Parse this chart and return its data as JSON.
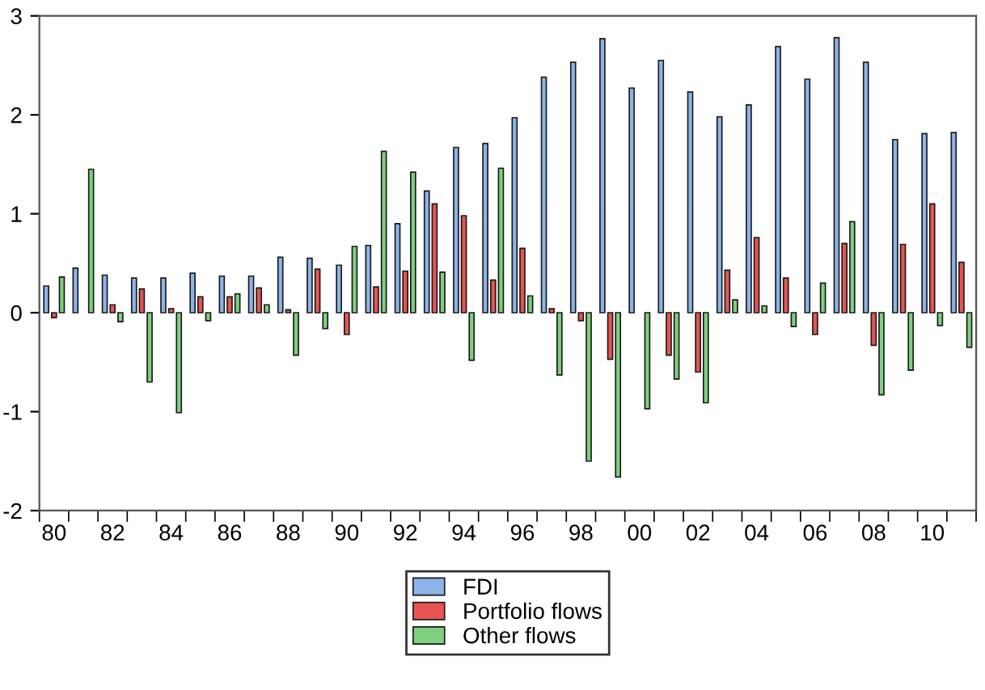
{
  "chart_data": {
    "type": "bar",
    "categories": [
      "80",
      null,
      "82",
      null,
      "84",
      null,
      "86",
      null,
      "88",
      null,
      "90",
      null,
      "92",
      null,
      "94",
      null,
      "96",
      null,
      "98",
      null,
      "00",
      null,
      "02",
      null,
      "04",
      null,
      "06",
      null,
      "08",
      null,
      "10",
      null
    ],
    "series": [
      {
        "name": "FDI",
        "color": "#8db4e8",
        "values": [
          0.27,
          0.45,
          0.38,
          0.35,
          0.35,
          0.4,
          0.37,
          0.37,
          0.56,
          0.55,
          0.48,
          0.68,
          0.9,
          1.23,
          1.67,
          1.71,
          1.97,
          2.38,
          2.53,
          2.77,
          2.27,
          2.55,
          2.23,
          1.98,
          2.1,
          2.69,
          2.36,
          2.78,
          2.53,
          1.75,
          1.81,
          1.82
        ]
      },
      {
        "name": "Portfolio flows",
        "color": "#e85454",
        "values": [
          -0.05,
          null,
          0.08,
          0.24,
          0.04,
          0.16,
          0.16,
          0.25,
          0.03,
          0.44,
          -0.22,
          0.26,
          0.42,
          1.1,
          0.98,
          0.33,
          0.65,
          0.04,
          -0.08,
          -0.47,
          null,
          -0.43,
          -0.6,
          0.43,
          0.76,
          0.35,
          -0.22,
          0.7,
          -0.33,
          0.69,
          1.1,
          0.51
        ]
      },
      {
        "name": "Other flows",
        "color": "#7fcf7f",
        "values": [
          0.36,
          1.45,
          -0.09,
          -0.7,
          -1.01,
          -0.08,
          0.19,
          0.08,
          -0.43,
          -0.16,
          0.67,
          1.63,
          1.42,
          0.41,
          -0.48,
          1.46,
          0.17,
          -0.63,
          -1.5,
          -1.66,
          -0.97,
          -0.67,
          -0.91,
          0.13,
          0.07,
          -0.14,
          0.3,
          0.92,
          -0.83,
          -0.58,
          -0.13,
          -0.35
        ]
      }
    ],
    "ylim": [
      -2,
      3
    ],
    "yticks": [
      {
        "value": -2,
        "label": "-2"
      },
      {
        "value": -1,
        "label": "-1"
      },
      0,
      1,
      2,
      3
    ],
    "grid": false,
    "legend": "bottom"
  }
}
